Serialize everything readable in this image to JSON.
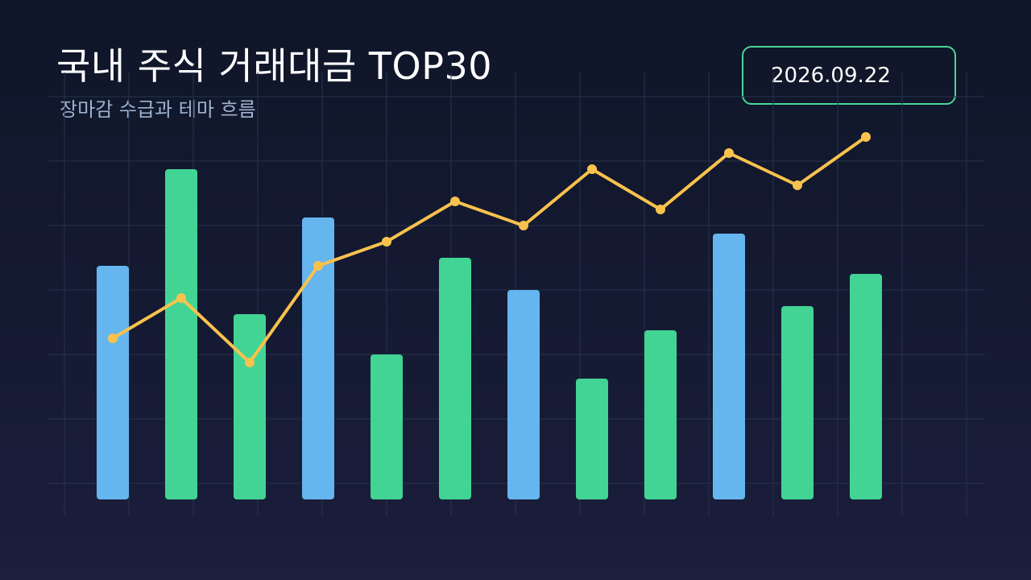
{
  "header": {
    "title": "국내 주식 거래대금 TOP30",
    "subtitle": "장마감 수급과 테마 흐름",
    "date": "2026.09.22"
  },
  "colors": {
    "blue_bar": "#65b5ee",
    "green_bar": "#42d494",
    "line": "#f8c24d",
    "grid": "#26334c",
    "badge_border": "#4ad596"
  },
  "chart_data": {
    "type": "bar",
    "ylim": [
      0,
      100
    ],
    "grid": true,
    "series": [
      {
        "kind": "bar",
        "values": [
          58,
          82,
          46,
          70,
          36,
          60,
          52,
          30,
          42,
          66,
          48,
          56
        ],
        "colors": [
          "blue",
          "green",
          "green",
          "blue",
          "green",
          "green",
          "blue",
          "green",
          "green",
          "blue",
          "green",
          "green"
        ]
      },
      {
        "kind": "line",
        "values": [
          40,
          50,
          34,
          58,
          64,
          74,
          68,
          82,
          72,
          86,
          78,
          90
        ]
      }
    ]
  }
}
